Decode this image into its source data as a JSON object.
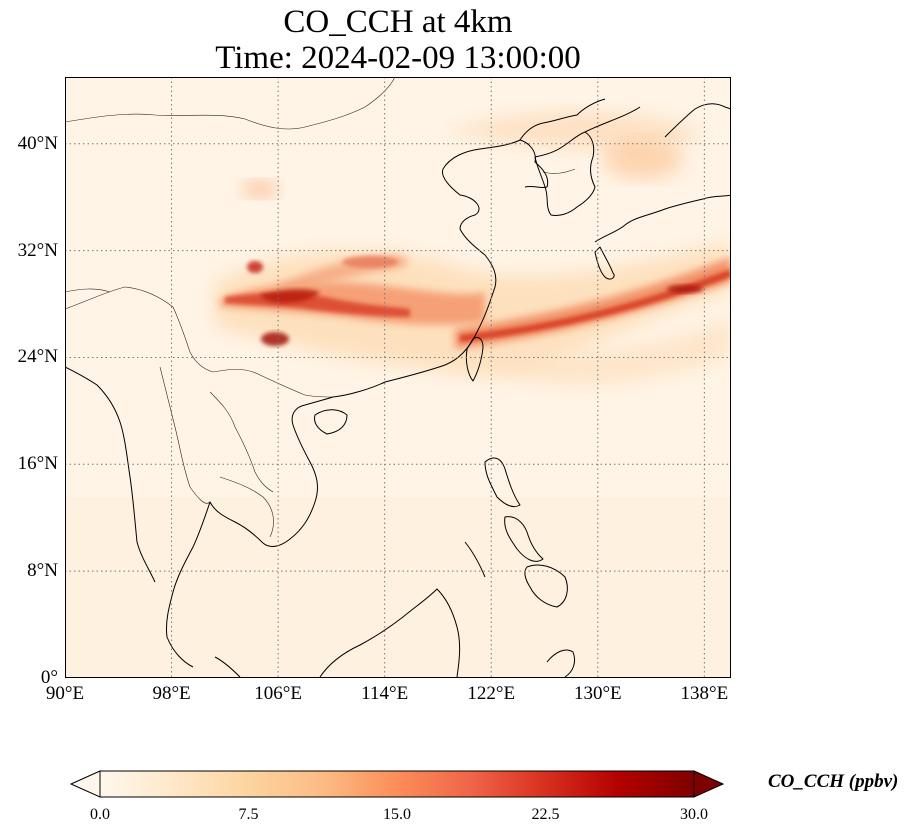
{
  "title": {
    "line1": "CO_CCH at 4km",
    "line2": "Time: 2024-02-09 13:00:00"
  },
  "map": {
    "projection": "PlateCarree",
    "lon_range": [
      90,
      140
    ],
    "lat_range": [
      0,
      45
    ],
    "gridlines": "dotted",
    "lat_ticks": [
      {
        "value": 40,
        "label": "40°N"
      },
      {
        "value": 32,
        "label": "32°N"
      },
      {
        "value": 24,
        "label": "24°N"
      },
      {
        "value": 16,
        "label": "16°N"
      },
      {
        "value": 8,
        "label": "8°N"
      },
      {
        "value": 0,
        "label": "0°"
      }
    ],
    "lon_ticks": [
      {
        "value": 90,
        "label": "90°E"
      },
      {
        "value": 98,
        "label": "98°E"
      },
      {
        "value": 106,
        "label": "106°E"
      },
      {
        "value": 114,
        "label": "114°E"
      },
      {
        "value": 122,
        "label": "122°E"
      },
      {
        "value": 130,
        "label": "130°E"
      },
      {
        "value": 138,
        "label": "138°E"
      }
    ],
    "field_colormap": "OrRd"
  },
  "colorbar": {
    "label": "CO_CCH (ppbv)",
    "min": 0.0,
    "max": 30.0,
    "extend": "both",
    "ticks": [
      "0.0",
      "7.5",
      "15.0",
      "22.5",
      "30.0"
    ],
    "colors": [
      "#fff7ec",
      "#fee8c8",
      "#fdd49e",
      "#fdbb84",
      "#fc8d59",
      "#ef6548",
      "#d7301f",
      "#b30000",
      "#7f0000"
    ]
  }
}
